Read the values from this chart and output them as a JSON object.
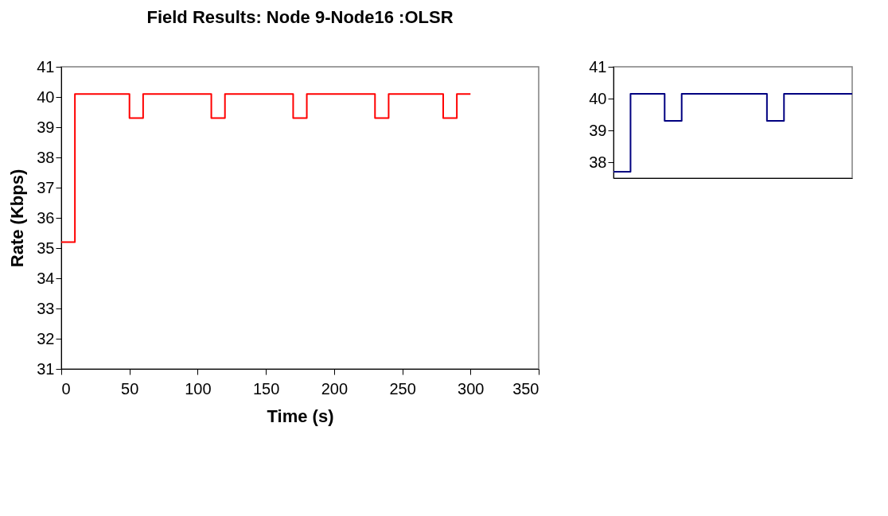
{
  "chart_data": [
    {
      "type": "step",
      "title": "Field Results: Node 9-Node16 :OLSR",
      "xlabel": "Time (s)",
      "ylabel": "Rate (Kbps)",
      "x": [
        0,
        10,
        50,
        60,
        110,
        120,
        170,
        180,
        230,
        240,
        280,
        290,
        300
      ],
      "series": [
        {
          "color": "#ff0000",
          "values": [
            35.2,
            40.1,
            39.3,
            40.1,
            39.3,
            40.1,
            39.3,
            40.1,
            39.3,
            40.1,
            39.3,
            40.1,
            40.1
          ]
        }
      ],
      "xlim": [
        0,
        350
      ],
      "xticks": [
        0,
        50,
        100,
        150,
        200,
        250,
        300,
        350
      ],
      "ylim": [
        31,
        41
      ],
      "yticks": [
        31,
        32,
        33,
        34,
        35,
        36,
        37,
        38,
        39,
        40,
        41
      ]
    },
    {
      "type": "step",
      "categories": [
        null,
        null,
        null,
        null,
        null,
        null,
        null,
        null,
        null,
        null,
        null,
        null,
        null,
        null,
        null
      ],
      "series": [
        {
          "color": "#000080",
          "values": [
            37.7,
            40.15,
            40.15,
            39.3,
            40.15,
            40.15,
            40.15,
            40.15,
            40.15,
            39.3,
            40.15,
            40.15,
            40.15,
            40.15,
            40.15
          ]
        }
      ],
      "ylim": [
        37.5,
        41
      ],
      "yticks": [
        38,
        39,
        40,
        41
      ],
      "tick_labels": "y"
    }
  ]
}
